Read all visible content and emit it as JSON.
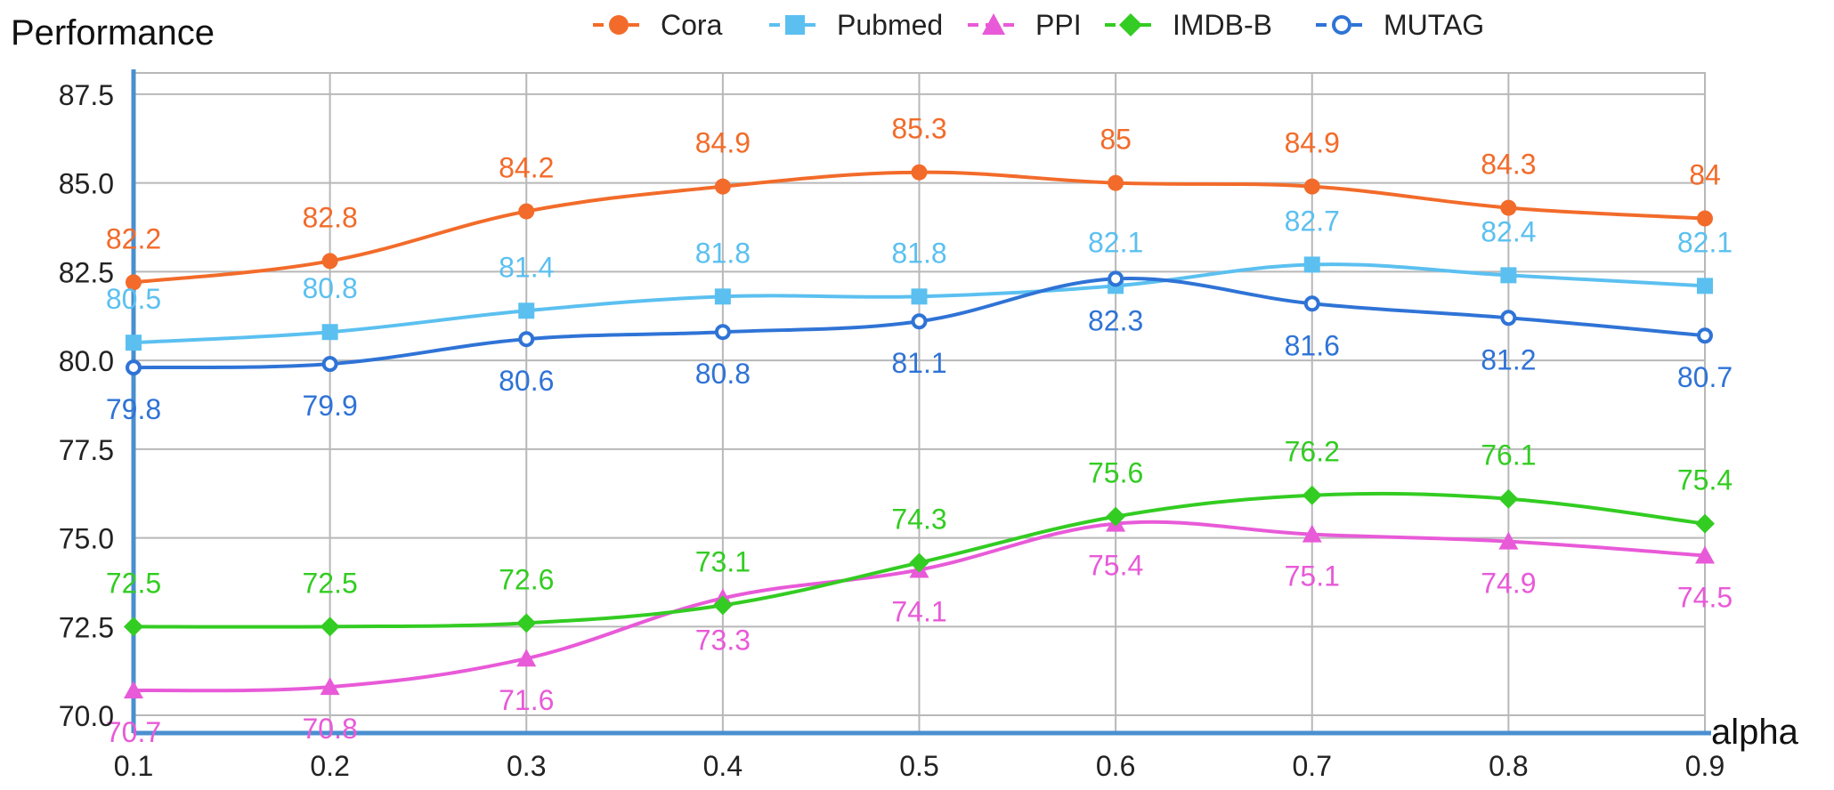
{
  "chart_data": {
    "type": "line",
    "title": "",
    "ylabel": "Performance",
    "xlabel": "alpha",
    "x": [
      0.1,
      0.2,
      0.3,
      0.4,
      0.5,
      0.6,
      0.7,
      0.8,
      0.9
    ],
    "x_tick_labels": [
      "0.1",
      "0.2",
      "0.3",
      "0.4",
      "0.5",
      "0.6",
      "0.7",
      "0.8",
      "0.9"
    ],
    "ylim": [
      69.5,
      88.1
    ],
    "y_ticks": [
      70.0,
      72.5,
      75.0,
      77.5,
      80.0,
      82.5,
      85.0,
      87.5
    ],
    "y_tick_labels": [
      "70.0",
      "72.5",
      "75.0",
      "77.5",
      "80.0",
      "82.5",
      "85.0",
      "87.5"
    ],
    "grid": true,
    "legend_position": "top-center",
    "series": [
      {
        "name": "Cora",
        "color": "#f26b2a",
        "marker": "circle-filled",
        "values": [
          82.2,
          82.8,
          84.2,
          84.9,
          85.3,
          85.0,
          84.9,
          84.3,
          84.0
        ],
        "labels": [
          "82.2",
          "82.8",
          "84.2",
          "84.9",
          "85.3",
          "85",
          "84.9",
          "84.3",
          "84"
        ],
        "label_side": "above"
      },
      {
        "name": "Pubmed",
        "color": "#5bc0f0",
        "marker": "square",
        "values": [
          80.5,
          80.8,
          81.4,
          81.8,
          81.8,
          82.1,
          82.7,
          82.4,
          82.1
        ],
        "labels": [
          "80.5",
          "80.8",
          "81.4",
          "81.8",
          "81.8",
          "82.1",
          "82.7",
          "82.4",
          "82.1"
        ],
        "label_side": "above"
      },
      {
        "name": "PPI",
        "color": "#e85ad8",
        "marker": "triangle",
        "values": [
          70.7,
          70.8,
          71.6,
          73.3,
          74.1,
          75.4,
          75.1,
          74.9,
          74.5
        ],
        "labels": [
          "70.7",
          "70.8",
          "71.6",
          "73.3",
          "74.1",
          "75.4",
          "75.1",
          "74.9",
          "74.5"
        ],
        "label_side": "below"
      },
      {
        "name": "IMDB-B",
        "color": "#33cc22",
        "marker": "diamond",
        "values": [
          72.5,
          72.5,
          72.6,
          73.1,
          74.3,
          75.6,
          76.2,
          76.1,
          75.4
        ],
        "labels": [
          "72.5",
          "72.5",
          "72.6",
          "73.1",
          "74.3",
          "75.6",
          "76.2",
          "76.1",
          "75.4"
        ],
        "label_side": "above"
      },
      {
        "name": "MUTAG",
        "color": "#2f73d6",
        "marker": "circle-open",
        "values": [
          79.8,
          79.9,
          80.6,
          80.8,
          81.1,
          82.3,
          81.6,
          81.2,
          80.7
        ],
        "labels": [
          "79.8",
          "79.9",
          "80.6",
          "80.8",
          "81.1",
          "82.3",
          "81.6",
          "81.2",
          "80.7"
        ],
        "label_side": "below"
      }
    ]
  }
}
